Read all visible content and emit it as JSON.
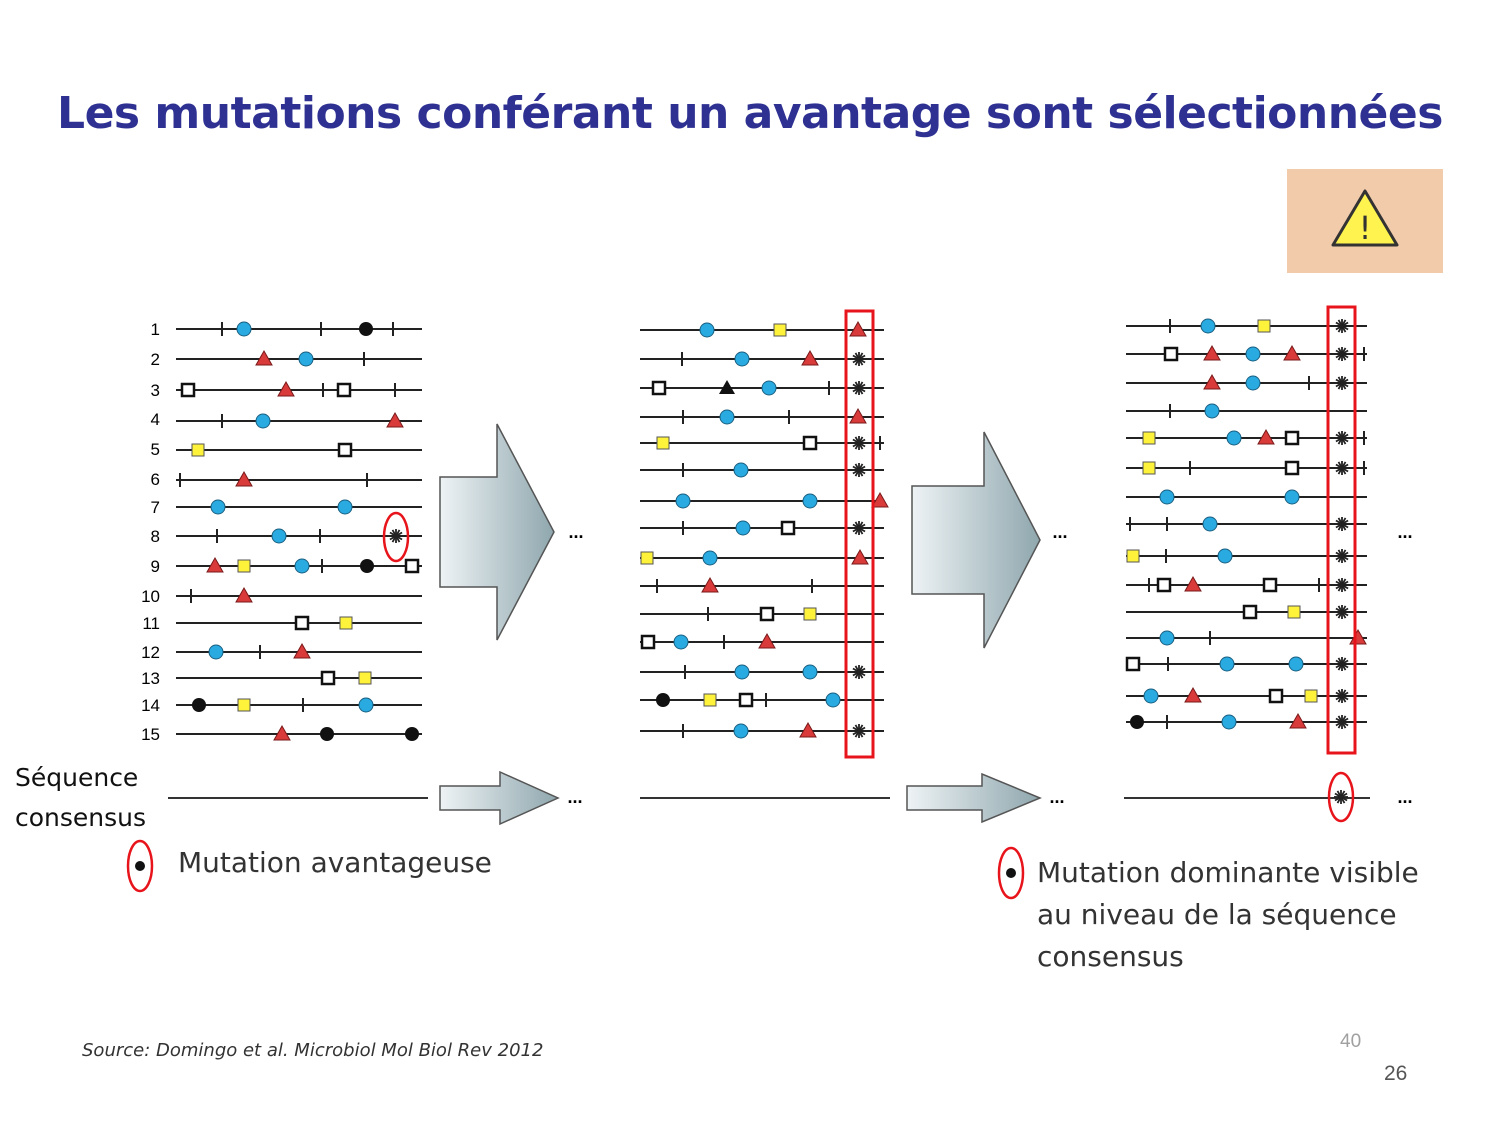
{
  "slide": {
    "title": "Les mutations conférant un avantage sont sélectionnées",
    "consensus_label_line1": "Séquence",
    "consensus_label_line2": "consensus",
    "legend_advantageous": "Mutation avantageuse",
    "legend_dominant_line1": "Mutation dominante visible",
    "legend_dominant_line2": "au niveau de la séquence",
    "legend_dominant_line3": "consensus",
    "source": "Source: Domingo et al. Microbiol Mol Biol Rev 2012",
    "page_number_grey": "40",
    "page_number": "26",
    "ellipsis": "...",
    "warning_symbol": "!"
  },
  "colors": {
    "title": "#2E3192",
    "circle": "#29ABE2",
    "triangle": "#D93A3A",
    "square_yellow": "#FFF23A",
    "highlight": "#E8141B",
    "warning_bg": "#F2CBAA",
    "warning_fill": "#FFF44F"
  },
  "panels": {
    "left": {
      "row_labels": [
        "1",
        "2",
        "3",
        "4",
        "5",
        "6",
        "7",
        "8",
        "9",
        "10",
        "11",
        "12",
        "13",
        "14",
        "15"
      ]
    }
  }
}
